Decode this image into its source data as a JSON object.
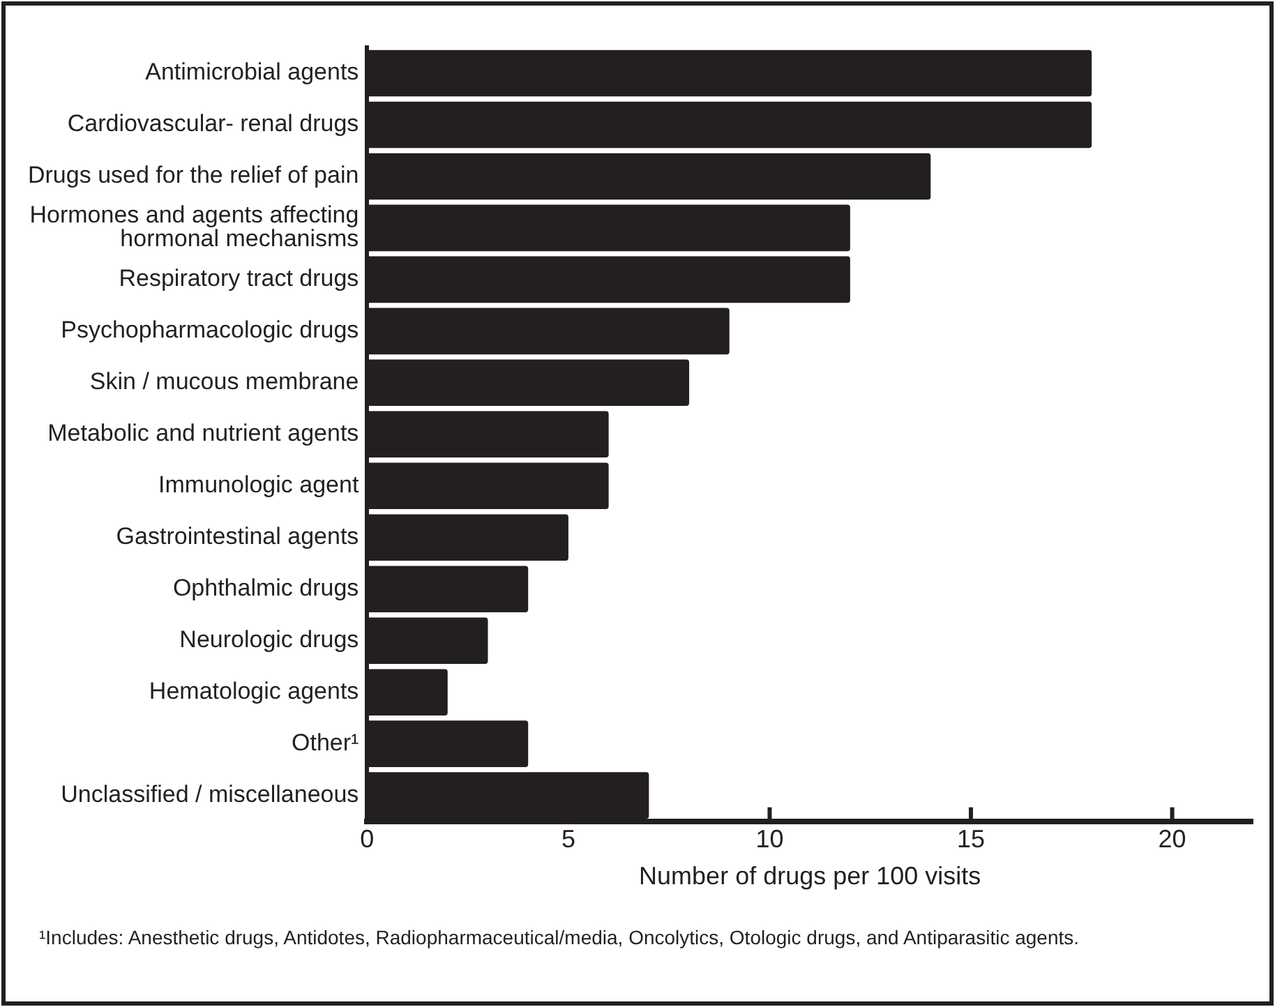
{
  "chart_data": {
    "type": "bar",
    "orientation": "horizontal",
    "xlabel": "Number of drugs per 100 visits",
    "categories": [
      "Antimicrobial agents",
      "Cardiovascular- renal drugs",
      "Drugs used for the relief of pain",
      "Hormones and agents affecting\nhormonal mechanisms",
      "Respiratory tract drugs",
      "Psychopharmacologic drugs",
      "Skin / mucous membrane",
      "Metabolic and nutrient agents",
      "Immunologic agent",
      "Gastrointestinal agents",
      "Ophthalmic drugs",
      "Neurologic drugs",
      "Hematologic agents",
      "Other¹",
      "Unclassified / miscellaneous"
    ],
    "values": [
      18,
      18,
      14,
      12,
      12,
      9,
      8,
      6,
      6,
      5,
      4,
      3,
      2,
      4,
      7
    ],
    "color": "#231f20",
    "xlim": [
      0,
      22
    ],
    "xticks": [
      0,
      5,
      10,
      15,
      20
    ],
    "grid": false,
    "legend": false,
    "annotations": [
      "¹Includes: Anesthetic drugs, Antidotes, Radiopharmaceutical/media, Oncolytics, Otologic drugs, and Antiparasitic agents."
    ]
  }
}
